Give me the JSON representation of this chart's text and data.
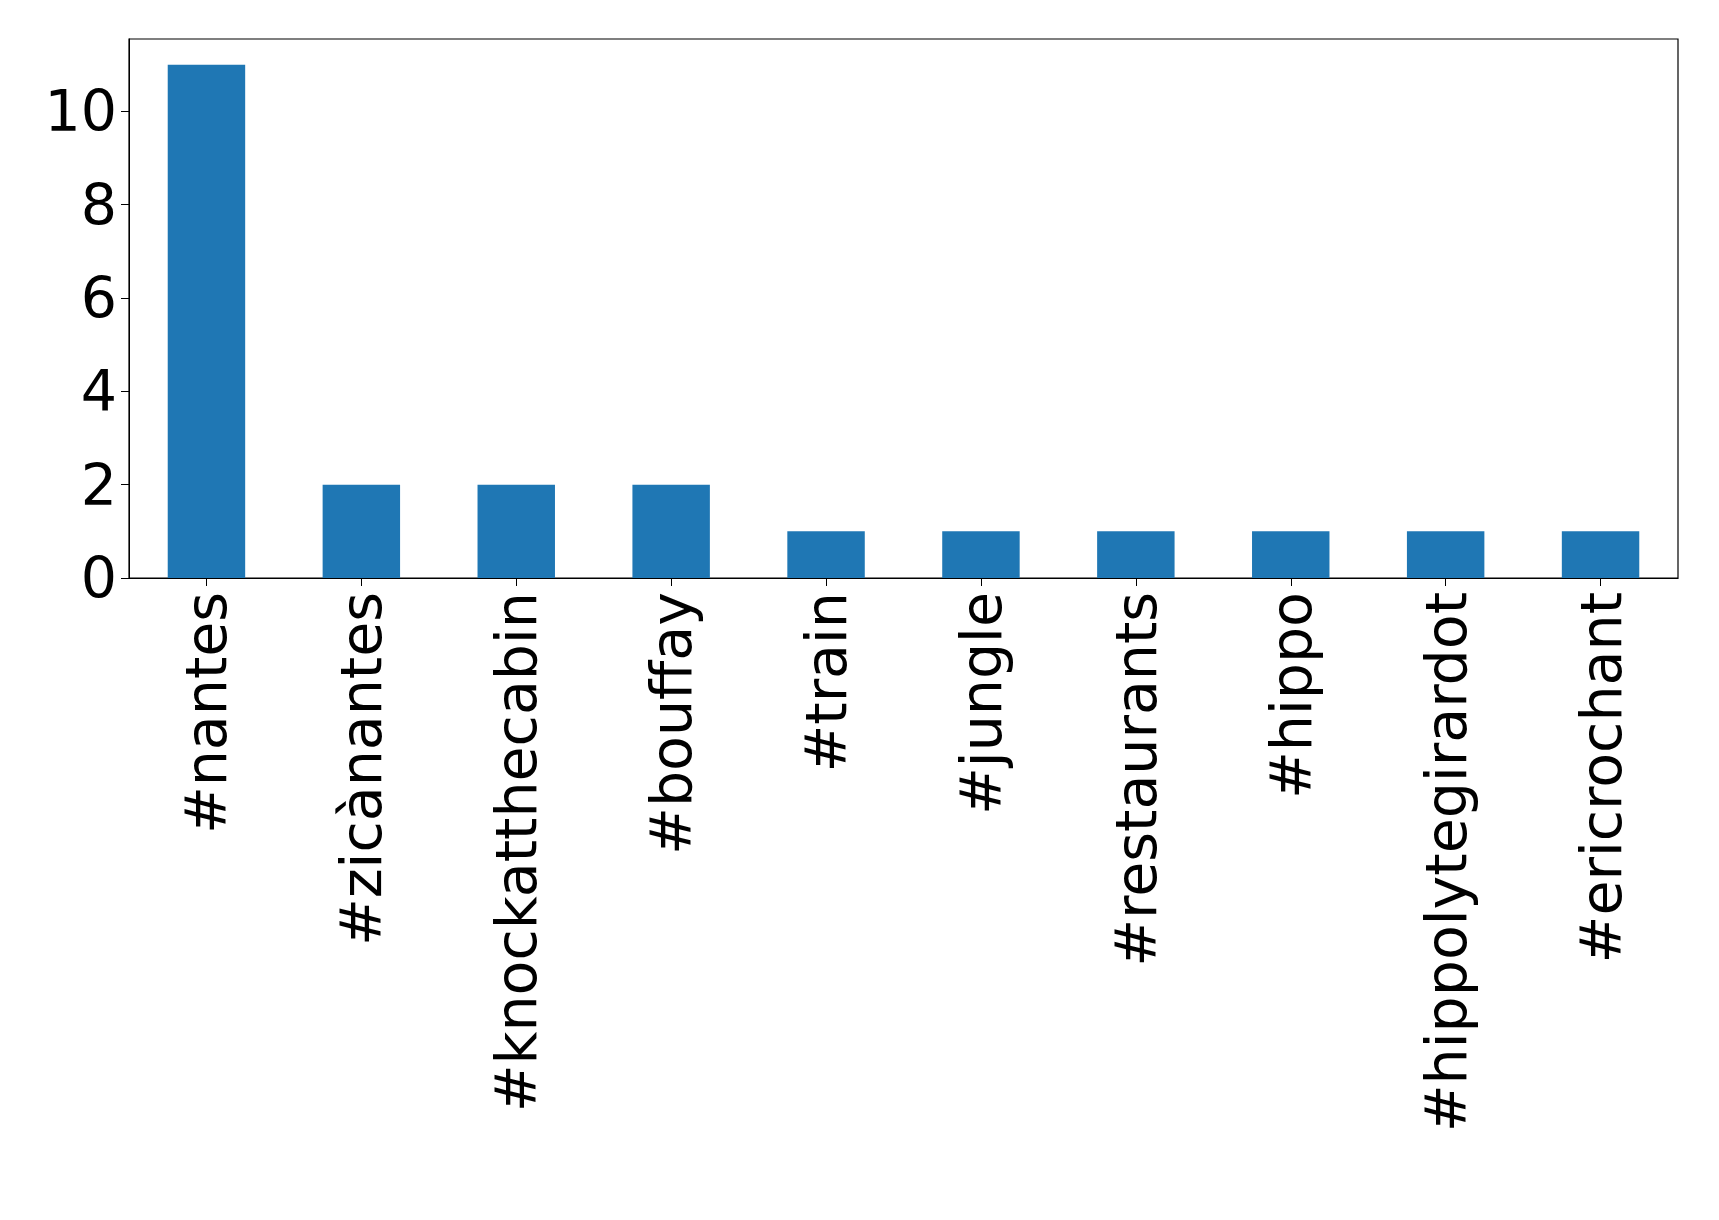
{
  "chart_data": {
    "type": "bar",
    "categories": [
      "#nantes",
      "#zicànantes",
      "#knockatthecabin",
      "#bouffay",
      "#train",
      "#jungle",
      "#restaurants",
      "#hippo",
      "#hippolytegirardot",
      "#ericrochant"
    ],
    "values": [
      11,
      2,
      2,
      2,
      1,
      1,
      1,
      1,
      1,
      1
    ],
    "color": "#1f77b4",
    "ylim": [
      0,
      11.55
    ],
    "yticks": [
      0,
      2,
      4,
      6,
      8,
      10
    ],
    "grid": false
  }
}
